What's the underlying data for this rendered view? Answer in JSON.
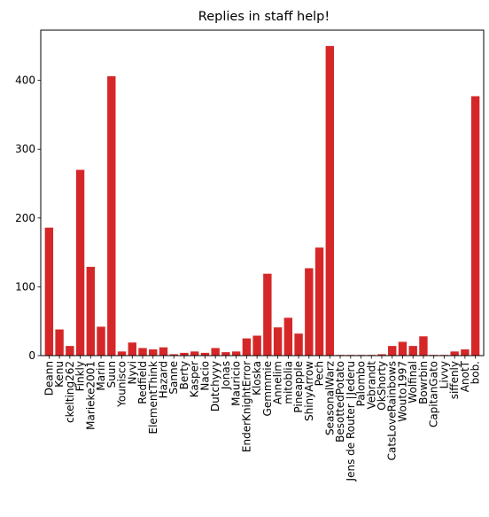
{
  "chart_data": {
    "type": "bar",
    "title": "Replies in staff help!",
    "xlabel": "",
    "ylabel": "",
    "ylim": [
      0,
      473
    ],
    "yticks": [
      0,
      100,
      200,
      300,
      400
    ],
    "bar_color": "#d62728",
    "categories": [
      "Deann",
      "Kenu",
      "ckelting262",
      "Finkly",
      "Marieke2001",
      "Marin",
      "Suun",
      "Younisco",
      "Nyvi",
      "Redfield",
      "ElementThink",
      "Hazard",
      "Sanne",
      "Berty",
      "Kasper",
      "Nacio",
      "Dutchyyy",
      "Jonas",
      "Mauricio",
      "EnderKnightError",
      "Kloska",
      "Gemmmie",
      "Annelim",
      "mitoblia",
      "Pineapple",
      "ShinyArrow",
      "Pech",
      "SeasonalWarz",
      "BesottedPotato",
      "Jens de Router ∣Jederu",
      "Palombo",
      "Vebrandt",
      "OkShorty",
      "CatsLoveRainbows",
      "Wouto1997",
      "Wolfinal",
      "Bowrbin",
      "CapitanGato",
      "Livvy",
      "siffenly",
      "AnotT",
      "bob."
    ],
    "values": [
      186,
      38,
      14,
      270,
      129,
      42,
      406,
      6,
      19,
      11,
      9,
      12,
      2,
      4,
      6,
      4,
      11,
      5,
      6,
      25,
      29,
      119,
      41,
      55,
      32,
      127,
      157,
      450,
      1,
      1,
      1,
      1,
      2,
      14,
      20,
      14,
      28,
      1,
      1,
      6,
      9,
      377
    ]
  }
}
